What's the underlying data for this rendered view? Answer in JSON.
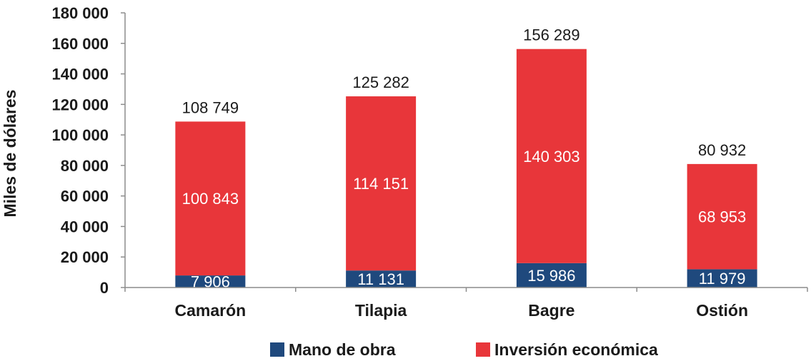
{
  "chart_data": {
    "type": "bar",
    "stacked": true,
    "ylabel": "Miles de dólares",
    "ylim": [
      0,
      180000
    ],
    "ytick_step": 20000,
    "ytick_labels": [
      "0",
      "20 000",
      "40 000",
      "60 000",
      "80 000",
      "100 000",
      "120 000",
      "140 000",
      "160 000",
      "180 000"
    ],
    "categories": [
      "Camarón",
      "Tilapia",
      "Bagre",
      "Ostión"
    ],
    "series": [
      {
        "name": "Mano de obra",
        "color": "#1f497d",
        "values": [
          7906,
          11131,
          15986,
          11979
        ],
        "labels": [
          "7 906",
          "11 131",
          "15 986",
          "11 979"
        ]
      },
      {
        "name": "Inversión económica",
        "color": "#e8363a",
        "values": [
          100843,
          114151,
          140303,
          68953
        ],
        "labels": [
          "100 843",
          "114 151",
          "140 303",
          "68 953"
        ]
      }
    ],
    "totals": [
      108749,
      125282,
      156289,
      80932
    ],
    "total_labels": [
      "108 749",
      "125 282",
      "156 289",
      "80 932"
    ],
    "legend_position": "bottom",
    "grid": false
  }
}
